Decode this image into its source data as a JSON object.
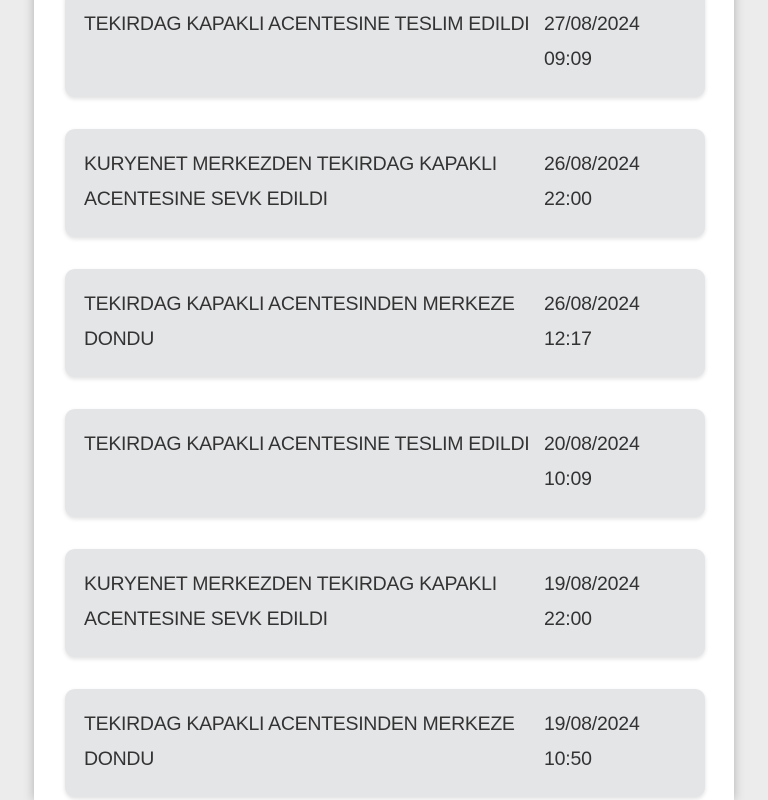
{
  "tracking_events": [
    {
      "description": "TEKIRDAG KAPAKLI ACENTESINE TESLIM EDILDI",
      "date": "27/08/2024",
      "time": "09:09"
    },
    {
      "description": "KURYENET MERKEZDEN TEKIRDAG KAPAKLI ACENTESINE SEVK EDILDI",
      "date": "26/08/2024",
      "time": "22:00"
    },
    {
      "description": "TEKIRDAG KAPAKLI ACENTESINDEN MERKEZE DONDU",
      "date": "26/08/2024",
      "time": "12:17"
    },
    {
      "description": "TEKIRDAG KAPAKLI ACENTESINE TESLIM EDILDI",
      "date": "20/08/2024",
      "time": "10:09"
    },
    {
      "description": "KURYENET MERKEZDEN TEKIRDAG KAPAKLI ACENTESINE SEVK EDILDI",
      "date": "19/08/2024",
      "time": "22:00"
    },
    {
      "description": "TEKIRDAG KAPAKLI ACENTESINDEN MERKEZE DONDU",
      "date": "19/08/2024",
      "time": "10:50"
    }
  ]
}
